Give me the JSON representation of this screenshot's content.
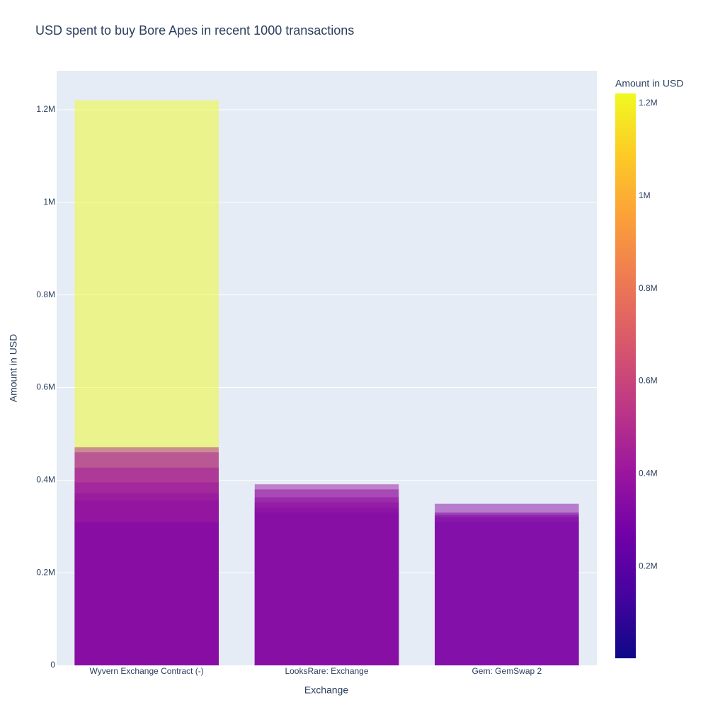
{
  "chart_data": {
    "type": "bar",
    "title": "USD spent to buy Bore Apes in recent 1000 transactions",
    "xlabel": "Exchange",
    "ylabel": "Amount in USD",
    "categories": [
      "Wyvern Exchange Contract (-)",
      "LooksRare: Exchange",
      "Gem: GemSwap 2"
    ],
    "values": [
      [
        1220000,
        471000,
        460000,
        427000,
        395000,
        372000,
        356000,
        309000
      ],
      [
        391000,
        380000,
        363000,
        352000,
        340000,
        330000
      ],
      [
        349000,
        330000,
        325000,
        320000,
        310000
      ]
    ],
    "opacity": 0.5,
    "ylim": [
      0,
      1284000
    ],
    "yticks": [
      0,
      {
        "value": 200000,
        "label": "0.2M"
      },
      {
        "value": 400000,
        "label": "0.4M"
      },
      {
        "value": 600000,
        "label": "0.6M"
      },
      {
        "value": 800000,
        "label": "0.8M"
      },
      {
        "value": 1000000,
        "label": "1M"
      },
      {
        "value": 1200000,
        "label": "1.2M"
      }
    ],
    "grid": true,
    "colorbar": {
      "title": "Amount in USD",
      "colorscale": [
        "#0d0887",
        "#46039f",
        "#7201a8",
        "#9c179e",
        "#bd3786",
        "#d8576b",
        "#ed7953",
        "#fb9f3a",
        "#fdca26",
        "#f0f921"
      ],
      "clim": [
        2000,
        1221000
      ],
      "ticks": [
        {
          "value": 200000,
          "label": "0.2M"
        },
        {
          "value": 400000,
          "label": "0.4M"
        },
        {
          "value": 600000,
          "label": "0.6M"
        },
        {
          "value": 800000,
          "label": "0.8M"
        },
        {
          "value": 1000000,
          "label": "1M"
        },
        {
          "value": 1200000,
          "label": "1.2M"
        }
      ]
    }
  }
}
